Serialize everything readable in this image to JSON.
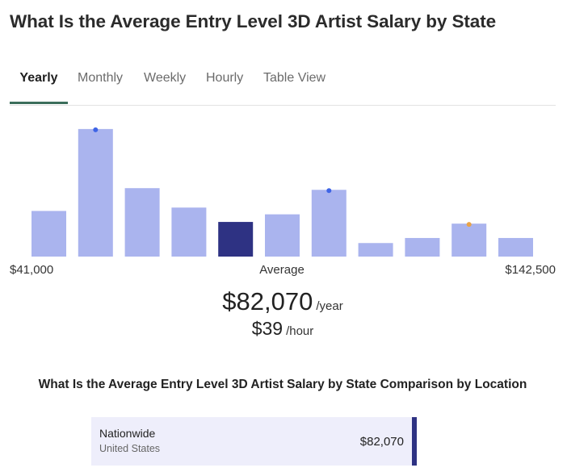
{
  "title": "What Is the Average Entry Level 3D Artist Salary by State",
  "tabs": [
    "Yearly",
    "Monthly",
    "Weekly",
    "Hourly",
    "Table View"
  ],
  "active_tab": "Yearly",
  "colors": {
    "bar": "#aab4ee",
    "bar_highlight": "#2e3283",
    "dot_blue": "#3e64e6",
    "dot_orange": "#e9a348",
    "tab_underline": "#3b6e5b"
  },
  "chart_data": {
    "type": "bar",
    "x_min_label": "$41,000",
    "x_max_label": "$142,500",
    "center_label": "Average",
    "values": [
      54,
      151,
      81,
      58,
      41,
      50,
      79,
      16,
      22,
      39,
      22
    ],
    "highlight_index": 4,
    "markers": [
      {
        "index": 1,
        "color": "blue"
      },
      {
        "index": 6,
        "color": "blue"
      },
      {
        "index": 9,
        "color": "orange"
      }
    ],
    "ylim": [
      0,
      160
    ]
  },
  "average": {
    "yearly_value": "$82,070",
    "yearly_unit": "/year",
    "hourly_value": "$39",
    "hourly_unit": "/hour"
  },
  "comparison": {
    "title": "What Is the Average Entry Level 3D Artist Salary by State Comparison by Location",
    "rows": [
      {
        "name": "Nationwide",
        "sub": "United States",
        "value": "$82,070"
      }
    ]
  }
}
